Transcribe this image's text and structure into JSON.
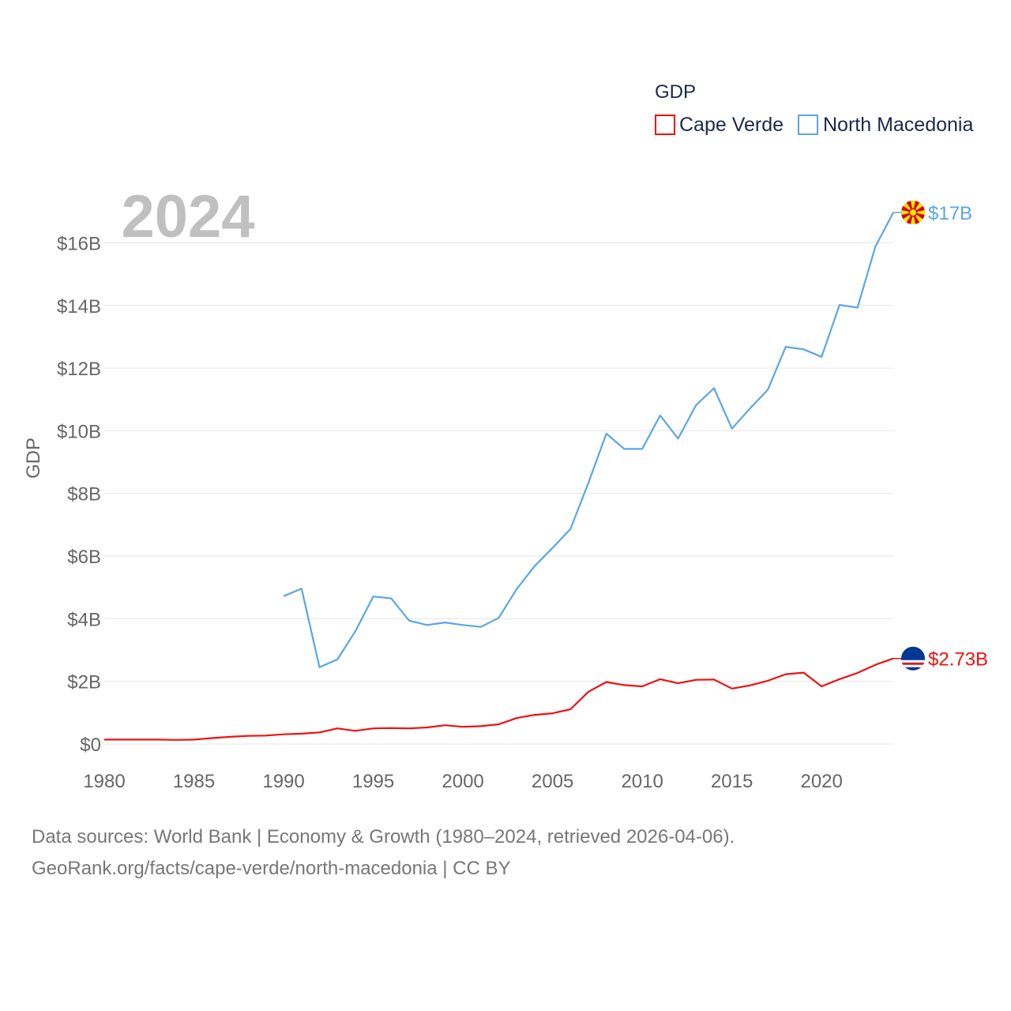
{
  "chart_data": {
    "type": "line",
    "year_label": "2024",
    "ylabel": "GDP",
    "legend_title": "GDP",
    "ylim": [
      0,
      17500000000
    ],
    "xlim": [
      1980,
      2024
    ],
    "x_ticks": [
      1980,
      1985,
      1990,
      1995,
      2000,
      2005,
      2010,
      2015,
      2020
    ],
    "x_tick_labels": [
      "1980",
      "1985",
      "1990",
      "1995",
      "2000",
      "2005",
      "2010",
      "2015",
      "2020"
    ],
    "y_ticks": [
      0,
      2000000000,
      4000000000,
      6000000000,
      8000000000,
      10000000000,
      12000000000,
      14000000000,
      16000000000
    ],
    "y_tick_labels": [
      "$0",
      "$2B",
      "$4B",
      "$6B",
      "$8B",
      "$10B",
      "$12B",
      "$14B",
      "$16B"
    ],
    "series": [
      {
        "name": "Cape Verde",
        "color": "#ee1111",
        "end_label": "$2.73B",
        "flag_icon": "cape-verde-flag-icon",
        "x": [
          1980,
          1981,
          1982,
          1983,
          1984,
          1985,
          1986,
          1987,
          1988,
          1989,
          1990,
          1991,
          1992,
          1993,
          1994,
          1995,
          1996,
          1997,
          1998,
          1999,
          2000,
          2001,
          2002,
          2003,
          2004,
          2005,
          2006,
          2007,
          2008,
          2009,
          2010,
          2011,
          2012,
          2013,
          2014,
          2015,
          2016,
          2017,
          2018,
          2019,
          2020,
          2021,
          2022,
          2023,
          2024
        ],
        "values": [
          140000000,
          140000000,
          140000000,
          140000000,
          130000000,
          140000000,
          190000000,
          230000000,
          260000000,
          270000000,
          310000000,
          330000000,
          370000000,
          500000000,
          420000000,
          500000000,
          510000000,
          500000000,
          530000000,
          600000000,
          550000000,
          570000000,
          630000000,
          830000000,
          930000000,
          980000000,
          1110000000,
          1670000000,
          1980000000,
          1880000000,
          1840000000,
          2070000000,
          1940000000,
          2050000000,
          2060000000,
          1770000000,
          1870000000,
          2020000000,
          2230000000,
          2280000000,
          1840000000,
          2070000000,
          2270000000,
          2530000000,
          2730000000
        ]
      },
      {
        "name": "North Macedonia",
        "color": "#5aa6e6",
        "end_label": "$17B",
        "flag_icon": "north-macedonia-flag-icon",
        "x": [
          1990,
          1991,
          1992,
          1993,
          1994,
          1995,
          1996,
          1997,
          1998,
          1999,
          2000,
          2001,
          2002,
          2003,
          2004,
          2005,
          2006,
          2007,
          2008,
          2009,
          2010,
          2011,
          2012,
          2013,
          2014,
          2015,
          2016,
          2017,
          2018,
          2019,
          2020,
          2021,
          2022,
          2023,
          2024
        ],
        "values": [
          4720000000,
          4960000000,
          2450000000,
          2700000000,
          3600000000,
          4710000000,
          4650000000,
          3940000000,
          3800000000,
          3880000000,
          3800000000,
          3740000000,
          4030000000,
          4950000000,
          5680000000,
          6260000000,
          6870000000,
          8340000000,
          9910000000,
          9420000000,
          9420000000,
          10490000000,
          9750000000,
          10820000000,
          11360000000,
          10070000000,
          10710000000,
          11310000000,
          12680000000,
          12600000000,
          12360000000,
          14020000000,
          13930000000,
          15880000000,
          16970000000
        ]
      }
    ]
  },
  "footer": {
    "line1": "Data sources: World Bank | Economy & Growth (1980–2024, retrieved 2026-04-06).",
    "line2": "GeoRank.org/facts/cape-verde/north-macedonia | CC BY"
  }
}
